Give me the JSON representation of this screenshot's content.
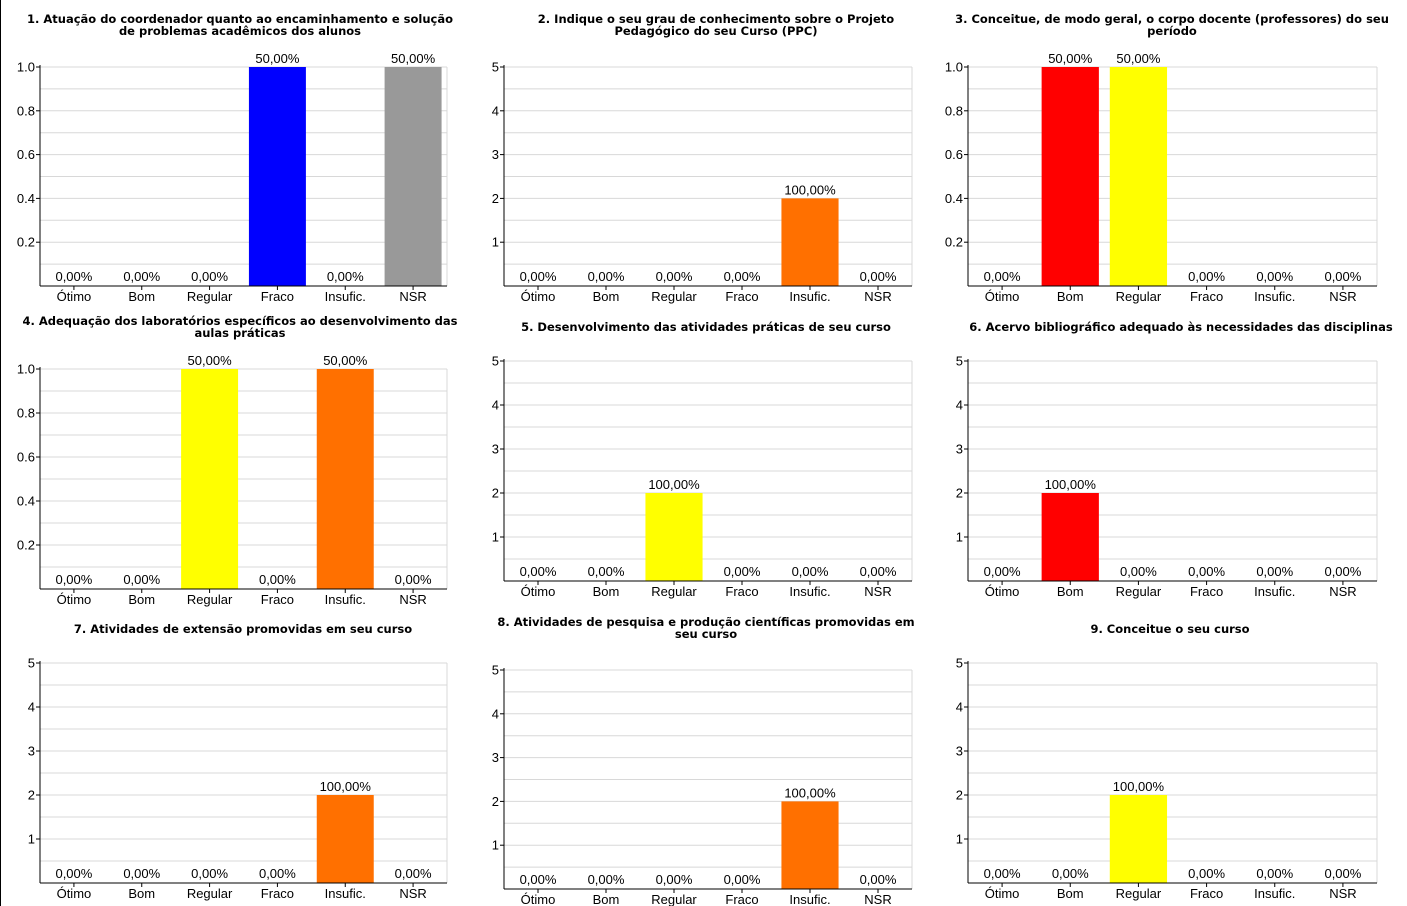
{
  "colors": {
    "blue": "#0000ff",
    "gray": "#999999",
    "red": "#ff0000",
    "yellow": "#ffff00",
    "orange": "#ff7000",
    "gridline": "#d8d8d8"
  },
  "chart_data": [
    {
      "type": "bar",
      "title": [
        "1. Atuação do coordenador quanto ao encaminhamento e solução",
        "de problemas acadêmicos dos alunos"
      ],
      "categories": [
        "Ótimo",
        "Bom",
        "Regular",
        "Fraco",
        "Insufic.",
        "NSR"
      ],
      "values": [
        0,
        0,
        0,
        1,
        0,
        1
      ],
      "labels": [
        "0,00%",
        "0,00%",
        "0,00%",
        "50,00%",
        "0,00%",
        "50,00%"
      ],
      "bar_colors": [
        "#0000ff",
        "#0000ff",
        "#0000ff",
        "#0000ff",
        "#0000ff",
        "#999999"
      ],
      "ylim": [
        0,
        1.0
      ],
      "yticks": [
        "0.2",
        "0.4",
        "0.6",
        "0.8",
        "1.0"
      ],
      "grid": true
    },
    {
      "type": "bar",
      "title": [
        "2. Indique o seu grau de conhecimento sobre o Projeto",
        "Pedagógico do seu Curso (PPC)"
      ],
      "categories": [
        "Ótimo",
        "Bom",
        "Regular",
        "Fraco",
        "Insufic.",
        "NSR"
      ],
      "values": [
        0,
        0,
        0,
        0,
        2,
        0
      ],
      "labels": [
        "0,00%",
        "0,00%",
        "0,00%",
        "0,00%",
        "100,00%",
        "0,00%"
      ],
      "bar_colors": [
        "#ff7000",
        "#ff7000",
        "#ff7000",
        "#ff7000",
        "#ff7000",
        "#ff7000"
      ],
      "ylim": [
        0,
        5
      ],
      "yticks": [
        "1",
        "2",
        "3",
        "4",
        "5"
      ],
      "grid": true
    },
    {
      "type": "bar",
      "title": [
        "3. Conceitue, de modo geral, o corpo docente (professores) do seu",
        "período"
      ],
      "categories": [
        "Ótimo",
        "Bom",
        "Regular",
        "Fraco",
        "Insufic.",
        "NSR"
      ],
      "values": [
        0,
        1,
        1,
        0,
        0,
        0
      ],
      "labels": [
        "0,00%",
        "50,00%",
        "50,00%",
        "0,00%",
        "0,00%",
        "0,00%"
      ],
      "bar_colors": [
        "#ff0000",
        "#ff0000",
        "#ffff00",
        "#ff0000",
        "#ff0000",
        "#ff0000"
      ],
      "ylim": [
        0,
        1.0
      ],
      "yticks": [
        "0.2",
        "0.4",
        "0.6",
        "0.8",
        "1.0"
      ],
      "grid": true
    },
    {
      "type": "bar",
      "title": [
        "4. Adequação dos laboratórios específicos ao desenvolvimento das",
        "aulas práticas"
      ],
      "categories": [
        "Ótimo",
        "Bom",
        "Regular",
        "Fraco",
        "Insufic.",
        "NSR"
      ],
      "values": [
        0,
        0,
        1,
        0,
        1,
        0
      ],
      "labels": [
        "0,00%",
        "0,00%",
        "50,00%",
        "0,00%",
        "50,00%",
        "0,00%"
      ],
      "bar_colors": [
        "#ffff00",
        "#ffff00",
        "#ffff00",
        "#ffff00",
        "#ff7000",
        "#ffff00"
      ],
      "ylim": [
        0,
        1.0
      ],
      "yticks": [
        "0.2",
        "0.4",
        "0.6",
        "0.8",
        "1.0"
      ],
      "grid": true
    },
    {
      "type": "bar",
      "title": [
        "5. Desenvolvimento das atividades práticas de seu curso"
      ],
      "categories": [
        "Ótimo",
        "Bom",
        "Regular",
        "Fraco",
        "Insufic.",
        "NSR"
      ],
      "values": [
        0,
        0,
        2,
        0,
        0,
        0
      ],
      "labels": [
        "0,00%",
        "0,00%",
        "100,00%",
        "0,00%",
        "0,00%",
        "0,00%"
      ],
      "bar_colors": [
        "#ffff00",
        "#ffff00",
        "#ffff00",
        "#ffff00",
        "#ffff00",
        "#ffff00"
      ],
      "ylim": [
        0,
        5
      ],
      "yticks": [
        "1",
        "2",
        "3",
        "4",
        "5"
      ],
      "grid": true
    },
    {
      "type": "bar",
      "title": [
        "6. Acervo bibliográfico adequado às necessidades das disciplinas"
      ],
      "categories": [
        "Ótimo",
        "Bom",
        "Regular",
        "Fraco",
        "Insufic.",
        "NSR"
      ],
      "values": [
        0,
        2,
        0,
        0,
        0,
        0
      ],
      "labels": [
        "0,00%",
        "100,00%",
        "0,00%",
        "0,00%",
        "0,00%",
        "0,00%"
      ],
      "bar_colors": [
        "#ff0000",
        "#ff0000",
        "#ff0000",
        "#ff0000",
        "#ff0000",
        "#ff0000"
      ],
      "ylim": [
        0,
        5
      ],
      "yticks": [
        "1",
        "2",
        "3",
        "4",
        "5"
      ],
      "grid": true
    },
    {
      "type": "bar",
      "title": [
        "7. Atividades de extensão promovidas em seu curso"
      ],
      "categories": [
        "Ótimo",
        "Bom",
        "Regular",
        "Fraco",
        "Insufic.",
        "NSR"
      ],
      "values": [
        0,
        0,
        0,
        0,
        2,
        0
      ],
      "labels": [
        "0,00%",
        "0,00%",
        "0,00%",
        "0,00%",
        "100,00%",
        "0,00%"
      ],
      "bar_colors": [
        "#ff7000",
        "#ff7000",
        "#ff7000",
        "#ff7000",
        "#ff7000",
        "#ff7000"
      ],
      "ylim": [
        0,
        5
      ],
      "yticks": [
        "1",
        "2",
        "3",
        "4",
        "5"
      ],
      "grid": true
    },
    {
      "type": "bar",
      "title": [
        "8. Atividades de pesquisa e produção científicas promovidas em",
        "seu curso"
      ],
      "categories": [
        "Ótimo",
        "Bom",
        "Regular",
        "Fraco",
        "Insufic.",
        "NSR"
      ],
      "values": [
        0,
        0,
        0,
        0,
        2,
        0
      ],
      "labels": [
        "0,00%",
        "0,00%",
        "0,00%",
        "0,00%",
        "100,00%",
        "0,00%"
      ],
      "bar_colors": [
        "#ff7000",
        "#ff7000",
        "#ff7000",
        "#ff7000",
        "#ff7000",
        "#ff7000"
      ],
      "ylim": [
        0,
        5
      ],
      "yticks": [
        "1",
        "2",
        "3",
        "4",
        "5"
      ],
      "grid": true
    },
    {
      "type": "bar",
      "title": [
        "9. Conceitue o seu curso"
      ],
      "categories": [
        "Ótimo",
        "Bom",
        "Regular",
        "Fraco",
        "Insufic.",
        "NSR"
      ],
      "values": [
        0,
        0,
        2,
        0,
        0,
        0
      ],
      "labels": [
        "0,00%",
        "0,00%",
        "100,00%",
        "0,00%",
        "0,00%",
        "0,00%"
      ],
      "bar_colors": [
        "#ffff00",
        "#ffff00",
        "#ffff00",
        "#ffff00",
        "#ffff00",
        "#ffff00"
      ],
      "ylim": [
        0,
        5
      ],
      "yticks": [
        "1",
        "2",
        "3",
        "4",
        "5"
      ],
      "grid": true
    }
  ]
}
